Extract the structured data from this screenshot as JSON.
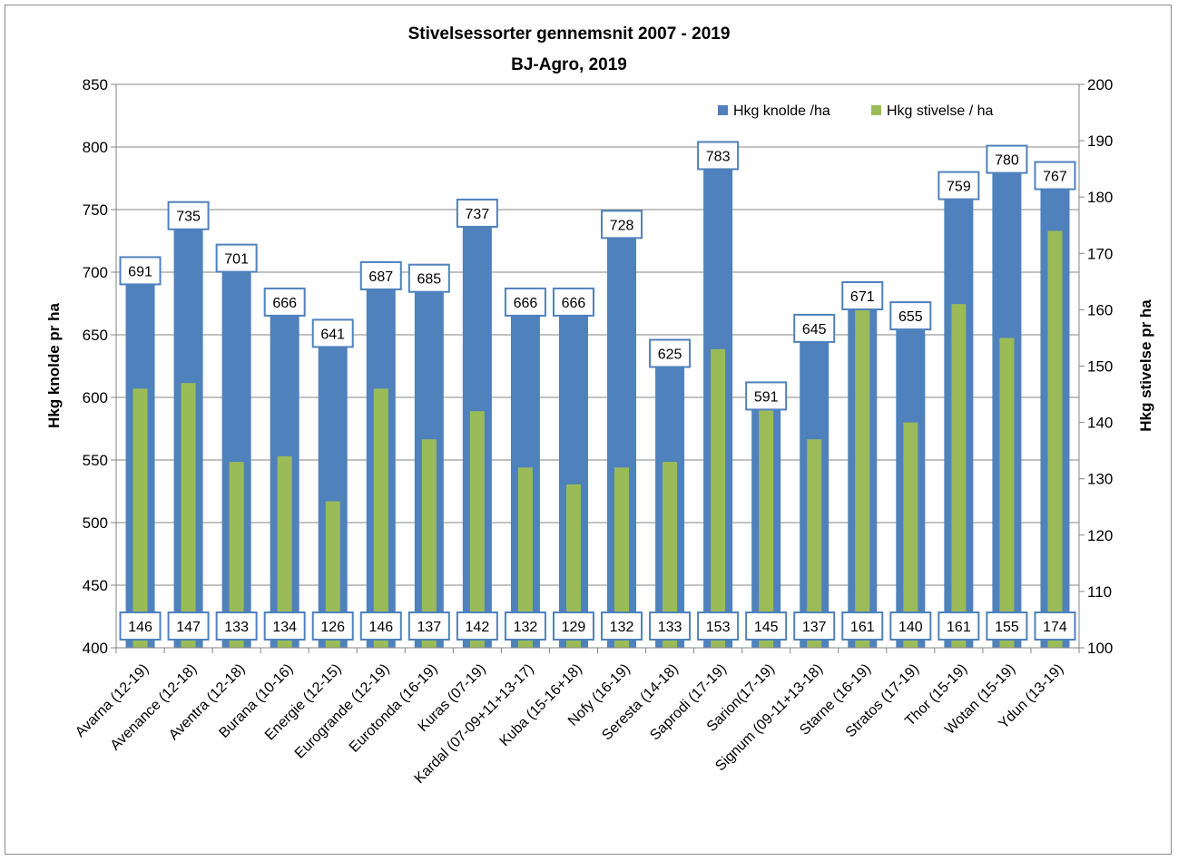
{
  "chart_data": {
    "type": "bar",
    "title": "Stivelsessorter gennemsnit 2007 - 2019",
    "subtitle": "BJ-Agro, 2019",
    "ylabel": "Hkg knolde pr ha",
    "y2label": "Hkg stivelse pr ha",
    "ylim": [
      400,
      850
    ],
    "y2lim": [
      100,
      200
    ],
    "yticks": [
      400,
      450,
      500,
      550,
      600,
      650,
      700,
      750,
      800,
      850
    ],
    "y2ticks": [
      100,
      110,
      120,
      130,
      140,
      150,
      160,
      170,
      180,
      190,
      200
    ],
    "legend_position": "top-right",
    "grid": true,
    "categories": [
      "Avarna (12-19)",
      "Avenance (12-18)",
      "Aventra (12-18)",
      "Burana (10-16)",
      "Energie (12-15)",
      "Eurogrande (12-19)",
      "Eurotonda (16-19)",
      "Kuras (07-19)",
      "Kardal (07-09+11+13-17)",
      "Kuba (15-16+18)",
      "Nofy (16-19)",
      "Seresta (14-18)",
      "Saprodi (17-19)",
      "Sarion(17-19)",
      "Signum (09-11+13-18)",
      "Starne (16-19)",
      "Stratos (17-19)",
      "Thor (15-19)",
      "Wotan (15-19)",
      "Ydun (13-19)"
    ],
    "series": [
      {
        "name": "Hkg knolde /ha",
        "axis": "left",
        "color": "#4f81bd",
        "values": [
          691,
          735,
          701,
          666,
          641,
          687,
          685,
          737,
          666,
          666,
          728,
          625,
          783,
          591,
          645,
          671,
          655,
          759,
          780,
          767
        ]
      },
      {
        "name": "Hkg stivelse / ha",
        "axis": "right",
        "color": "#9bbb59",
        "values": [
          146,
          147,
          133,
          134,
          126,
          146,
          137,
          142,
          132,
          129,
          132,
          133,
          153,
          145,
          137,
          161,
          140,
          161,
          155,
          174
        ]
      }
    ]
  }
}
